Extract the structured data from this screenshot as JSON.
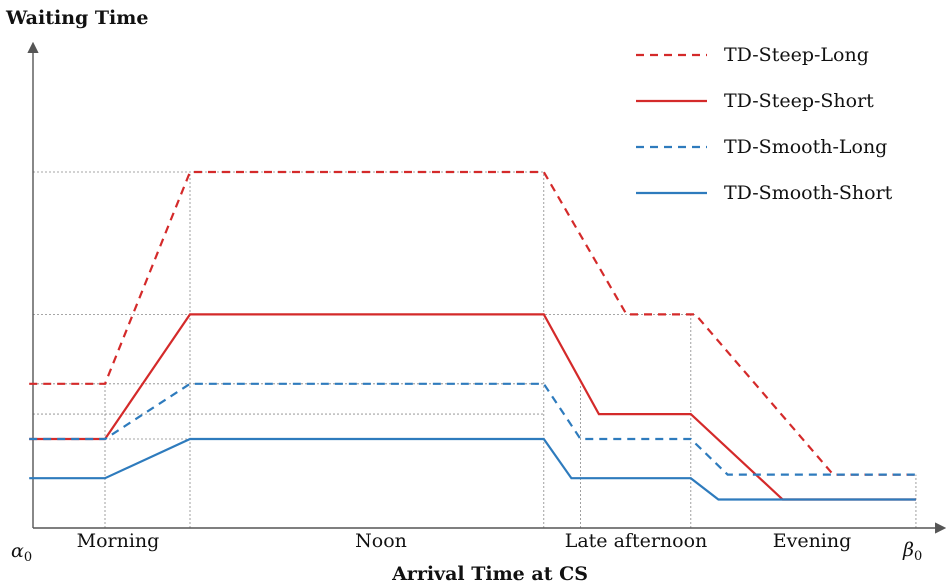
{
  "chart_data": {
    "type": "line",
    "ylabel": "Waiting Time",
    "xlabel": "Arrival Time at CS",
    "x_start_label": "α",
    "x_start_sub": "0",
    "x_end_label": "β",
    "x_end_sub": "0",
    "periods": [
      "Morning",
      "Noon",
      "Late afternoon",
      "Evening"
    ],
    "x_range": [
      0,
      20
    ],
    "y_range": [
      0,
      20
    ],
    "grid": "dotted reference lines at breakpoints",
    "legend_position": "top-right",
    "colors": {
      "red": "#d42a2a",
      "blue": "#2e7bbd",
      "axis": "#555555",
      "grid": "#888888"
    },
    "series": [
      {
        "name": "TD-Steep-Long",
        "color": "#d42a2a",
        "dash": true,
        "points": [
          [
            0,
            8.1
          ],
          [
            1.65,
            8.1
          ],
          [
            3.5,
            20
          ],
          [
            11.2,
            20
          ],
          [
            13.0,
            12
          ],
          [
            14.5,
            12
          ],
          [
            17.5,
            3
          ],
          [
            19.3,
            3
          ]
        ]
      },
      {
        "name": "TD-Steep-Short",
        "color": "#d42a2a",
        "dash": false,
        "points": [
          [
            0,
            5
          ],
          [
            1.65,
            5
          ],
          [
            3.5,
            12
          ],
          [
            11.2,
            12
          ],
          [
            12.4,
            6.4
          ],
          [
            14.4,
            6.4
          ],
          [
            16.4,
            1.6
          ],
          [
            19.3,
            1.6
          ]
        ]
      },
      {
        "name": "TD-Smooth-Long",
        "color": "#2e7bbd",
        "dash": true,
        "points": [
          [
            0,
            5
          ],
          [
            1.65,
            5
          ],
          [
            3.5,
            8.1
          ],
          [
            11.2,
            8.1
          ],
          [
            12.0,
            5
          ],
          [
            14.4,
            5
          ],
          [
            15.2,
            3
          ],
          [
            19.3,
            3
          ]
        ]
      },
      {
        "name": "TD-Smooth-Short",
        "color": "#2e7bbd",
        "dash": false,
        "points": [
          [
            0,
            2.8
          ],
          [
            1.65,
            2.8
          ],
          [
            3.5,
            5
          ],
          [
            11.2,
            5
          ],
          [
            11.8,
            2.8
          ],
          [
            14.4,
            2.8
          ],
          [
            15.0,
            1.6
          ],
          [
            19.3,
            1.6
          ]
        ]
      }
    ],
    "reference_y": [
      20,
      12,
      8.1,
      6.4,
      5
    ],
    "reference_x": [
      1.65,
      3.5,
      11.2,
      12.0,
      14.4,
      19.3
    ]
  }
}
